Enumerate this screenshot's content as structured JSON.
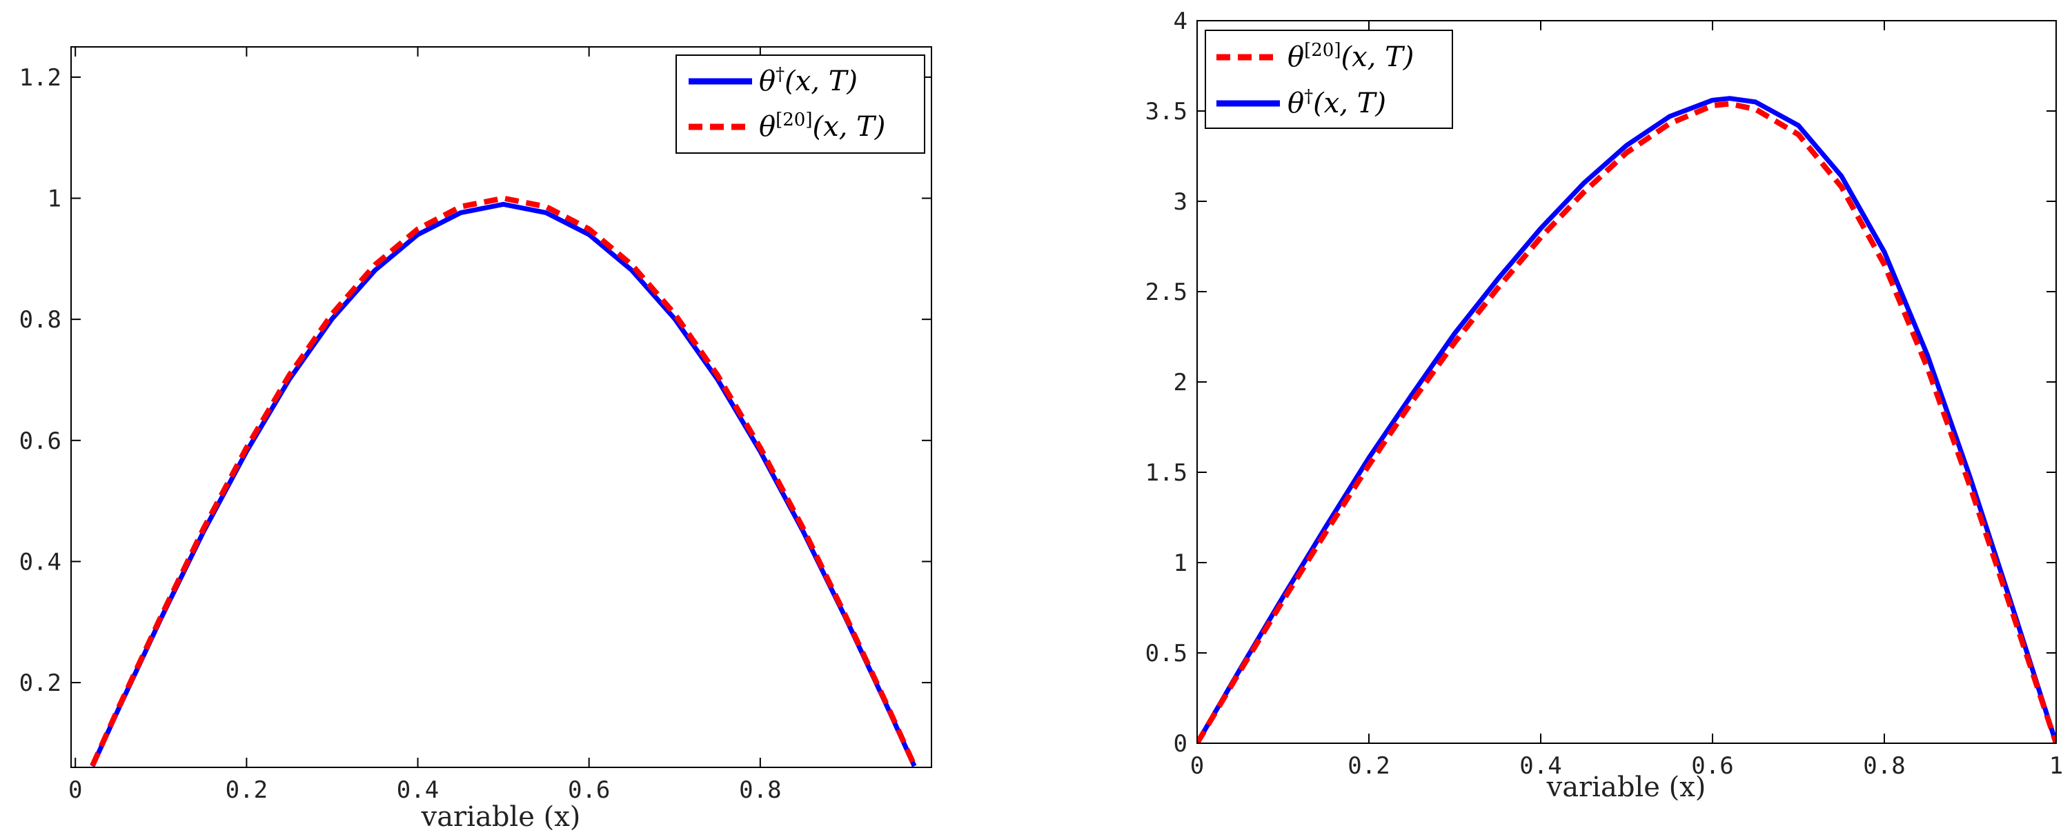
{
  "chart_data": [
    {
      "type": "line",
      "xlabel": "variable (x)",
      "ylabel": "",
      "xlim": [
        -0.005,
        1.0
      ],
      "ylim": [
        0.06,
        1.25
      ],
      "xticks": [
        0,
        0.2,
        0.4,
        0.6,
        0.8
      ],
      "xtick_labels": [
        "0",
        "0.2",
        "0.4",
        "0.6",
        "0.8"
      ],
      "yticks": [
        0.2,
        0.4,
        0.6,
        0.8,
        1.0,
        1.2
      ],
      "ytick_labels": [
        "0.2",
        "0.4",
        "0.6",
        "0.8",
        "1",
        "1.2"
      ],
      "legend_position": "top-right",
      "grid": false,
      "series": [
        {
          "name": "θ†(x,T)",
          "color": "#0000ff",
          "style": "solid",
          "x": [
            0.02,
            0.05,
            0.1,
            0.15,
            0.2,
            0.25,
            0.3,
            0.35,
            0.4,
            0.45,
            0.5,
            0.55,
            0.6,
            0.65,
            0.7,
            0.75,
            0.8,
            0.85,
            0.9,
            0.95,
            0.98
          ],
          "y": [
            0.062,
            0.155,
            0.306,
            0.45,
            0.582,
            0.701,
            0.801,
            0.881,
            0.94,
            0.976,
            0.99,
            0.976,
            0.94,
            0.881,
            0.801,
            0.701,
            0.582,
            0.45,
            0.306,
            0.155,
            0.062
          ]
        },
        {
          "name": "θ[20](x,T)",
          "color": "#ff0000",
          "style": "dashed",
          "x": [
            0.02,
            0.05,
            0.1,
            0.15,
            0.2,
            0.25,
            0.3,
            0.35,
            0.4,
            0.45,
            0.5,
            0.55,
            0.6,
            0.65,
            0.7,
            0.75,
            0.8,
            0.85,
            0.9,
            0.95,
            0.98
          ],
          "y": [
            0.063,
            0.157,
            0.309,
            0.455,
            0.588,
            0.708,
            0.809,
            0.89,
            0.949,
            0.986,
            1.0,
            0.986,
            0.949,
            0.89,
            0.809,
            0.708,
            0.588,
            0.455,
            0.309,
            0.157,
            0.063
          ]
        }
      ]
    },
    {
      "type": "line",
      "xlabel": "variable (x)",
      "ylabel": "",
      "xlim": [
        0,
        1
      ],
      "ylim": [
        0,
        4
      ],
      "xticks": [
        0,
        0.2,
        0.4,
        0.6,
        0.8,
        1
      ],
      "xtick_labels": [
        "0",
        "0.2",
        "0.4",
        "0.6",
        "0.8",
        "1"
      ],
      "yticks": [
        0,
        0.5,
        1,
        1.5,
        2,
        2.5,
        3,
        3.5,
        4
      ],
      "ytick_labels": [
        "0",
        "0.5",
        "1",
        "1.5",
        "2",
        "2.5",
        "3",
        "3.5",
        "4"
      ],
      "legend_position": "top-left",
      "grid": false,
      "series": [
        {
          "name": "θ[20](x,T)",
          "color": "#ff0000",
          "style": "dashed",
          "x": [
            0,
            0.05,
            0.1,
            0.15,
            0.2,
            0.25,
            0.3,
            0.35,
            0.4,
            0.45,
            0.5,
            0.55,
            0.6,
            0.62,
            0.65,
            0.7,
            0.75,
            0.8,
            0.85,
            0.9,
            0.95,
            1.0
          ],
          "y": [
            0,
            0.4,
            0.79,
            1.17,
            1.54,
            1.89,
            2.22,
            2.52,
            2.8,
            3.05,
            3.27,
            3.43,
            3.53,
            3.54,
            3.51,
            3.37,
            3.08,
            2.65,
            2.08,
            1.42,
            0.71,
            0
          ]
        },
        {
          "name": "θ†(x,T)",
          "color": "#0000ff",
          "style": "solid",
          "x": [
            0,
            0.05,
            0.1,
            0.15,
            0.2,
            0.25,
            0.3,
            0.35,
            0.4,
            0.45,
            0.5,
            0.55,
            0.6,
            0.62,
            0.65,
            0.7,
            0.75,
            0.8,
            0.85,
            0.9,
            0.95,
            1.0
          ],
          "y": [
            0,
            0.41,
            0.81,
            1.2,
            1.58,
            1.93,
            2.27,
            2.57,
            2.85,
            3.1,
            3.31,
            3.47,
            3.56,
            3.57,
            3.55,
            3.42,
            3.14,
            2.72,
            2.15,
            1.47,
            0.74,
            0
          ]
        }
      ]
    }
  ]
}
